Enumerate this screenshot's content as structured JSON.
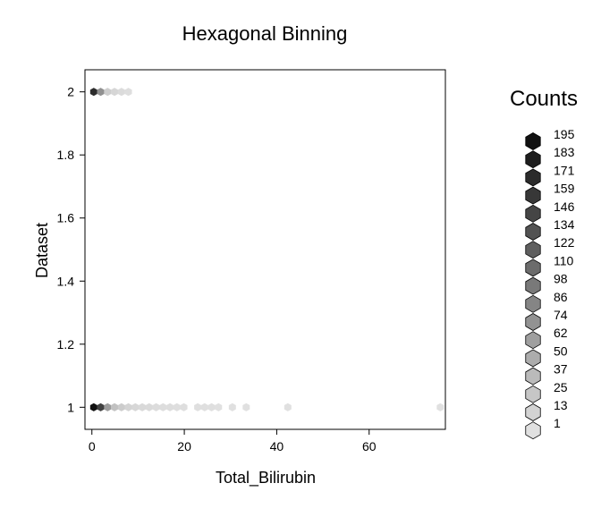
{
  "chart_data": {
    "type": "hexbin",
    "title": "Hexagonal Binning",
    "xlabel": "Total_Bilirubin",
    "ylabel": "Dataset",
    "xlim": [
      -1.5,
      76.5
    ],
    "ylim": [
      0.93,
      2.07
    ],
    "x_ticks": [
      0,
      20,
      40,
      60
    ],
    "y_ticks": [
      1,
      1.2,
      1.4,
      1.6,
      1.8,
      2
    ],
    "y_tick_labels": [
      "1",
      "1.2",
      "1.4",
      "1.6",
      "1.8",
      "2"
    ],
    "grid": false,
    "bins": [
      {
        "x": 0.4,
        "y": 2,
        "count": 170
      },
      {
        "x": 1.9,
        "y": 2,
        "count": 75
      },
      {
        "x": 3.4,
        "y": 2,
        "count": 18
      },
      {
        "x": 4.9,
        "y": 2,
        "count": 10
      },
      {
        "x": 6.4,
        "y": 2,
        "count": 6
      },
      {
        "x": 7.9,
        "y": 2,
        "count": 3
      },
      {
        "x": 0.4,
        "y": 1,
        "count": 195
      },
      {
        "x": 1.9,
        "y": 1,
        "count": 150
      },
      {
        "x": 3.4,
        "y": 1,
        "count": 65
      },
      {
        "x": 4.9,
        "y": 1,
        "count": 30
      },
      {
        "x": 6.4,
        "y": 1,
        "count": 20
      },
      {
        "x": 7.9,
        "y": 1,
        "count": 12
      },
      {
        "x": 9.4,
        "y": 1,
        "count": 9
      },
      {
        "x": 10.9,
        "y": 1,
        "count": 8
      },
      {
        "x": 12.4,
        "y": 1,
        "count": 7
      },
      {
        "x": 13.9,
        "y": 1,
        "count": 5
      },
      {
        "x": 15.4,
        "y": 1,
        "count": 4
      },
      {
        "x": 16.9,
        "y": 1,
        "count": 4
      },
      {
        "x": 18.4,
        "y": 1,
        "count": 3
      },
      {
        "x": 19.9,
        "y": 1,
        "count": 3
      },
      {
        "x": 22.9,
        "y": 1,
        "count": 2
      },
      {
        "x": 24.4,
        "y": 1,
        "count": 2
      },
      {
        "x": 25.9,
        "y": 1,
        "count": 2
      },
      {
        "x": 27.4,
        "y": 1,
        "count": 1
      },
      {
        "x": 30.4,
        "y": 1,
        "count": 1
      },
      {
        "x": 33.4,
        "y": 1,
        "count": 1
      },
      {
        "x": 42.4,
        "y": 1,
        "count": 1
      },
      {
        "x": 75.4,
        "y": 1,
        "count": 1
      }
    ],
    "legend": {
      "title": "Counts",
      "position": "right",
      "levels": [
        195,
        183,
        171,
        159,
        146,
        134,
        122,
        110,
        98,
        86,
        74,
        62,
        50,
        37,
        25,
        13,
        1
      ]
    },
    "colors": {
      "min": "#e0e0e0",
      "max": "#111111"
    }
  }
}
